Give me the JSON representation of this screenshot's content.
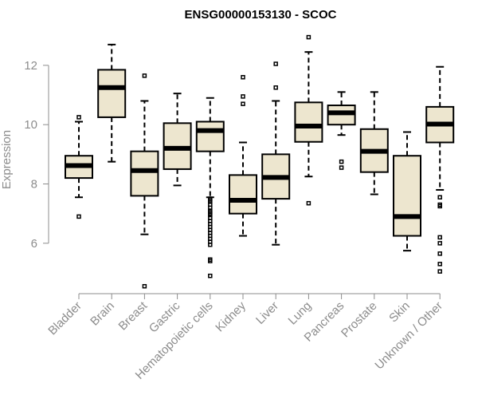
{
  "chart_data": {
    "type": "boxplot",
    "title": "ENSG00000153130 - SCOC",
    "ylabel": "Expression",
    "xlabel": "",
    "ylim": [
      4.3,
      13.1
    ],
    "yticks": [
      6,
      8,
      10,
      12
    ],
    "box_fill": "#ede6cf",
    "categories": [
      "Bladder",
      "Brain",
      "Breast",
      "Gastric",
      "Hematopoietic cells",
      "Kidney",
      "Liver",
      "Lung",
      "Pancreas",
      "Prostate",
      "Skin",
      "Unknown / Other"
    ],
    "boxes": [
      {
        "whisker_low": 7.55,
        "q1": 8.2,
        "median": 8.62,
        "q3": 8.95,
        "whisker_high": 10.1,
        "outliers": [
          6.9,
          10.25
        ]
      },
      {
        "whisker_low": 8.75,
        "q1": 10.25,
        "median": 11.25,
        "q3": 11.85,
        "whisker_high": 12.7,
        "outliers": []
      },
      {
        "whisker_low": 6.3,
        "q1": 7.6,
        "median": 8.45,
        "q3": 9.1,
        "whisker_high": 10.8,
        "outliers": [
          4.55,
          11.65
        ]
      },
      {
        "whisker_low": 7.95,
        "q1": 8.5,
        "median": 9.2,
        "q3": 10.05,
        "whisker_high": 11.05,
        "outliers": []
      },
      {
        "whisker_low": 7.55,
        "q1": 9.1,
        "median": 9.8,
        "q3": 10.1,
        "whisker_high": 10.9,
        "outliers": [
          7.5,
          7.45,
          7.4,
          7.3,
          7.2,
          7.1,
          7.05,
          7.0,
          6.95,
          6.85,
          6.75,
          6.65,
          6.55,
          6.45,
          6.35,
          6.25,
          6.15,
          6.05,
          5.95,
          5.45,
          5.4,
          4.9
        ]
      },
      {
        "whisker_low": 6.25,
        "q1": 7.0,
        "median": 7.45,
        "q3": 8.3,
        "whisker_high": 9.4,
        "outliers": [
          10.7,
          10.95,
          11.6
        ]
      },
      {
        "whisker_low": 5.95,
        "q1": 7.5,
        "median": 8.22,
        "q3": 9.0,
        "whisker_high": 10.8,
        "outliers": [
          11.25,
          12.05
        ]
      },
      {
        "whisker_low": 8.25,
        "q1": 9.42,
        "median": 9.95,
        "q3": 10.75,
        "whisker_high": 12.45,
        "outliers": [
          7.35,
          12.95
        ]
      },
      {
        "whisker_low": 9.65,
        "q1": 10.0,
        "median": 10.4,
        "q3": 10.65,
        "whisker_high": 11.1,
        "outliers": [
          8.55,
          8.75
        ]
      },
      {
        "whisker_low": 7.65,
        "q1": 8.4,
        "median": 9.1,
        "q3": 9.85,
        "whisker_high": 11.1,
        "outliers": []
      },
      {
        "whisker_low": 5.75,
        "q1": 6.25,
        "median": 6.9,
        "q3": 8.95,
        "whisker_high": 9.75,
        "outliers": []
      },
      {
        "whisker_low": 7.8,
        "q1": 9.4,
        "median": 10.02,
        "q3": 10.6,
        "whisker_high": 11.95,
        "outliers": [
          7.55,
          7.3,
          7.25,
          6.2,
          6.0,
          5.65,
          5.3,
          5.05
        ]
      }
    ]
  }
}
